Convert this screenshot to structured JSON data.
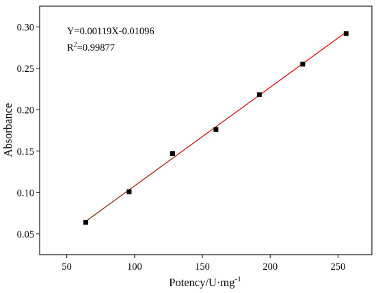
{
  "chart_data": {
    "type": "scatter",
    "xlabel": {
      "main": "Potency/U·mg",
      "sup": "-1"
    },
    "ylabel": "Absorbance",
    "xlim": [
      30,
      275
    ],
    "ylim": [
      0.025,
      0.325
    ],
    "xticks": [
      50,
      100,
      150,
      200,
      250
    ],
    "yticks": [
      0.05,
      0.1,
      0.15,
      0.2,
      0.25,
      0.3
    ],
    "xtick_labels": [
      "50",
      "100",
      "150",
      "200",
      "250"
    ],
    "ytick_labels": [
      "0.05",
      "0.10",
      "0.15",
      "0.20",
      "0.25",
      "0.30"
    ],
    "grid": false,
    "legend": "none",
    "series": [
      {
        "points": [
          {
            "x": 64,
            "y": 0.064
          },
          {
            "x": 96,
            "y": 0.101
          },
          {
            "x": 128,
            "y": 0.147
          },
          {
            "x": 160,
            "y": 0.176
          },
          {
            "x": 192,
            "y": 0.218
          },
          {
            "x": 224,
            "y": 0.255
          },
          {
            "x": 256,
            "y": 0.292
          }
        ],
        "color": "#000000"
      }
    ],
    "fit_line": {
      "slope": 0.00119,
      "intercept": -0.01096,
      "x_range": [
        64,
        256
      ],
      "color": "#e00000",
      "start_color": "#6b3a10"
    },
    "annotations": {
      "equation": "Y=0.00119X-0.01096",
      "r2_prefix": "R",
      "r2_sup": "2",
      "r2_value": "=0.99877"
    }
  }
}
